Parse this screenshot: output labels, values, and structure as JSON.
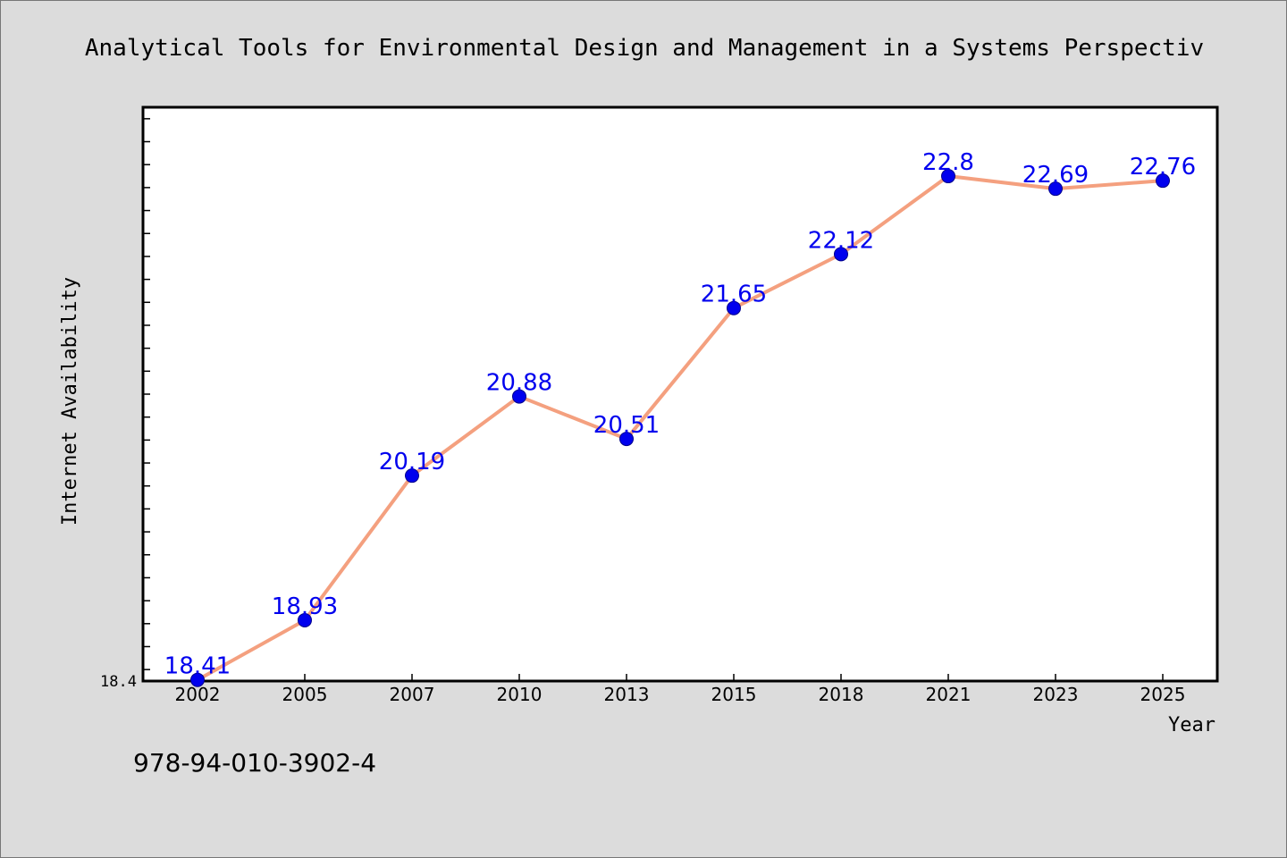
{
  "chart_data": {
    "type": "line",
    "title": "Analytical Tools for Environmental Design and Management in a Systems Perspectiv",
    "xlabel": "Year",
    "ylabel": "Internet Availability",
    "categories": [
      "2002",
      "2005",
      "2007",
      "2010",
      "2013",
      "2015",
      "2018",
      "2021",
      "2023",
      "2025"
    ],
    "series": [
      {
        "values": [
          18.41,
          18.93,
          20.19,
          20.88,
          20.51,
          21.65,
          22.12,
          22.8,
          22.69,
          22.76
        ]
      }
    ],
    "data_labels": [
      "18.41",
      "18.93",
      "20.19",
      "20.88",
      "20.51",
      "21.65",
      "22.12",
      "22.8",
      "22.69",
      "22.76"
    ],
    "y_tick_label": "18.4",
    "ylim": [
      18.4,
      23.4
    ],
    "grid": false,
    "line_color": "#f4a07f",
    "marker_color": "#0000ee",
    "label_color": "#0000ee"
  },
  "footer": {
    "isbn": "978-94-010-3902-4"
  }
}
